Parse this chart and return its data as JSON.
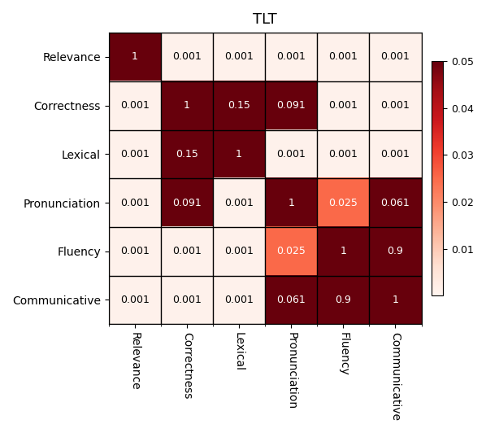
{
  "title": "TLT",
  "labels": [
    "Relevance",
    "Correctness",
    "Lexical",
    "Pronunciation",
    "Fluency",
    "Communicative"
  ],
  "matrix": [
    [
      1,
      0.001,
      0.001,
      0.001,
      0.001,
      0.001
    ],
    [
      0.001,
      1,
      0.15,
      0.091,
      0.001,
      0.001
    ],
    [
      0.001,
      0.15,
      1,
      0.001,
      0.001,
      0.001
    ],
    [
      0.001,
      0.091,
      0.001,
      1,
      0.025,
      0.061
    ],
    [
      0.001,
      0.001,
      0.001,
      0.025,
      1,
      0.9
    ],
    [
      0.001,
      0.001,
      0.001,
      0.061,
      0.9,
      1
    ]
  ],
  "vmin": 0,
  "vmax": 0.05,
  "cmap": "Reds",
  "colorbar_ticks": [
    0.01,
    0.02,
    0.03,
    0.04,
    0.05
  ],
  "text_color_threshold": 0.025,
  "title_fontsize": 13,
  "label_fontsize": 10,
  "cell_fontsize": 9
}
